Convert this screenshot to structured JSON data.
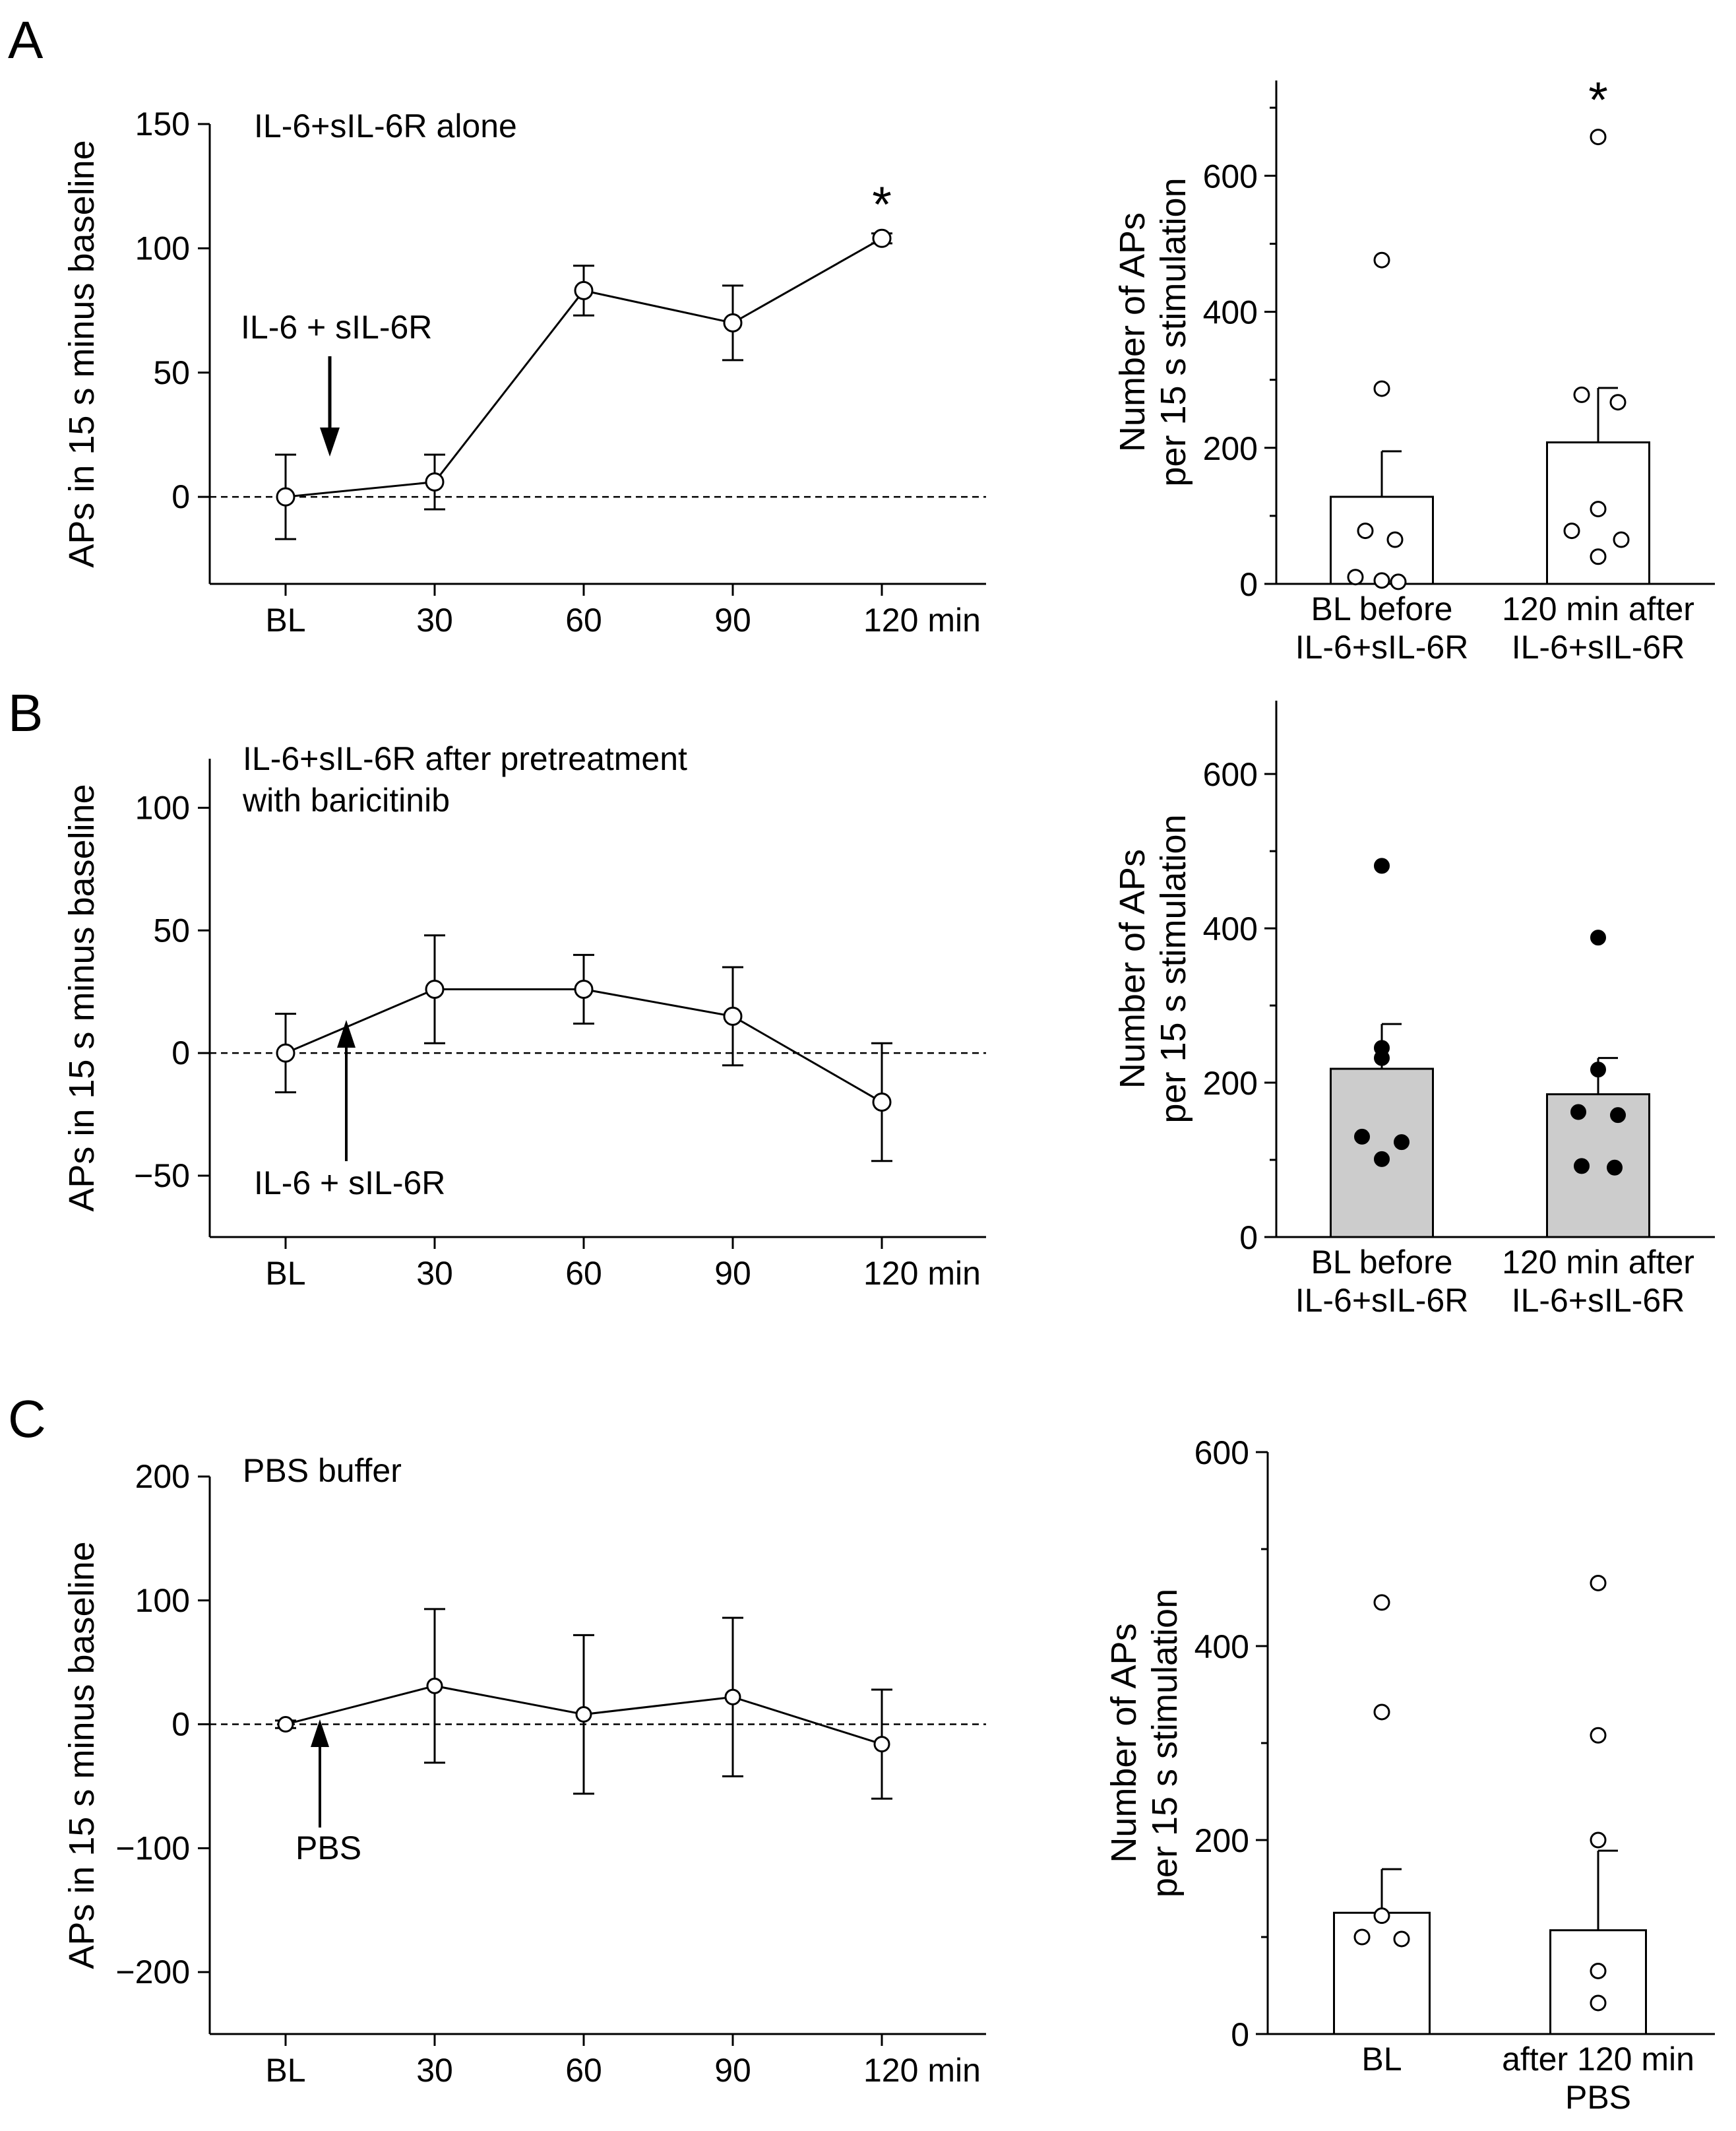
{
  "figure": {
    "panels": [
      {
        "letter": "A",
        "annotation_lines": [
          "IL-6+sIL-6R alone"
        ],
        "arrow_label": "IL-6 + sIL-6R"
      },
      {
        "letter": "B",
        "annotation_lines": [
          "IL-6+sIL-6R after pretreatment",
          "with baricitinib"
        ],
        "arrow_label": "IL-6 + sIL-6R"
      },
      {
        "letter": "C",
        "annotation_lines": [
          "PBS buffer"
        ],
        "arrow_label": "PBS"
      }
    ]
  },
  "chart_data": [
    {
      "id": "A-line",
      "type": "line",
      "panel": "A",
      "title": "IL-6+sIL-6R alone",
      "categories": [
        "BL",
        "30",
        "60",
        "90",
        "120 min"
      ],
      "values": [
        0,
        6,
        83,
        70,
        104
      ],
      "errors": [
        17,
        11,
        10,
        15,
        2
      ],
      "ylabel": "APs in 15 s minus baseline",
      "ylim": [
        -35,
        150
      ],
      "yticks": [
        0,
        50,
        100,
        150
      ],
      "reference_line": 0,
      "significance": {
        "index": 4,
        "label": "*"
      },
      "arrow": {
        "label": "IL-6 + sIL-6R",
        "direction": "down",
        "after_category": 0
      }
    },
    {
      "id": "A-bar",
      "type": "bar",
      "panel": "A",
      "categories": [
        "BL before\nIL-6+sIL-6R",
        "120 min after\nIL-6+sIL-6R"
      ],
      "values": [
        128,
        208
      ],
      "errors": [
        67,
        80
      ],
      "points": [
        [
          476,
          287,
          78,
          65,
          10,
          5,
          3
        ],
        [
          657,
          278,
          267,
          110,
          78,
          65,
          40
        ]
      ],
      "marker": "open",
      "bar_fill": "#ffffff",
      "ylabel": "Number of APs\nper 15 s stimulation",
      "ylim": [
        0,
        740
      ],
      "yticks": [
        0,
        200,
        400,
        600
      ],
      "minor_yticks": [
        100,
        300,
        500,
        700
      ],
      "significance": {
        "index": 1,
        "label": "*"
      }
    },
    {
      "id": "B-line",
      "type": "line",
      "panel": "B",
      "title": "IL-6+sIL-6R after pretreatment with baricitinib",
      "categories": [
        "BL",
        "30",
        "60",
        "90",
        "120 min"
      ],
      "values": [
        0,
        26,
        26,
        15,
        -20
      ],
      "errors": [
        16,
        22,
        14,
        20,
        24
      ],
      "ylabel": "APs in 15 s minus baseline",
      "ylim": [
        -75,
        120
      ],
      "yticks": [
        -50,
        0,
        50,
        100
      ],
      "reference_line": 0,
      "arrow": {
        "label": "IL-6 + sIL-6R",
        "direction": "up",
        "after_category": 0
      }
    },
    {
      "id": "B-bar",
      "type": "bar",
      "panel": "B",
      "categories": [
        "BL before\nIL-6+sIL-6R",
        "120 min after\nIL-6+sIL-6R"
      ],
      "values": [
        218,
        185
      ],
      "errors": [
        58,
        47
      ],
      "points": [
        [
          481,
          245,
          232,
          130,
          123,
          101
        ],
        [
          388,
          217,
          162,
          158,
          92,
          90
        ]
      ],
      "marker": "filled",
      "bar_fill": "#cccccc",
      "ylabel": "Number of APs\nper 15 s stimulation",
      "ylim": [
        0,
        695
      ],
      "yticks": [
        0,
        200,
        400,
        600
      ],
      "minor_yticks": [
        100,
        300,
        500
      ],
      "significance": null
    },
    {
      "id": "C-line",
      "type": "line",
      "panel": "C",
      "title": "PBS buffer",
      "categories": [
        "BL",
        "30",
        "60",
        "90",
        "120 min"
      ],
      "values": [
        0,
        31,
        8,
        22,
        -16
      ],
      "errors": [
        3,
        62,
        64,
        64,
        44
      ],
      "ylabel": "APs in 15 s minus baseline",
      "ylim": [
        -250,
        200
      ],
      "yticks": [
        -200,
        -100,
        0,
        100,
        200
      ],
      "reference_line": 0,
      "arrow": {
        "label": "PBS",
        "direction": "up",
        "after_category": 0
      }
    },
    {
      "id": "C-bar",
      "type": "bar",
      "panel": "C",
      "categories": [
        "BL",
        "after 120 min\nPBS"
      ],
      "values": [
        125,
        107
      ],
      "errors": [
        45,
        82
      ],
      "points": [
        [
          445,
          332,
          122,
          100,
          98
        ],
        [
          465,
          308,
          200,
          65,
          32
        ]
      ],
      "marker": "open",
      "bar_fill": "#ffffff",
      "ylabel": "Number of APs\nper 15 s stimulation",
      "ylim": [
        0,
        600
      ],
      "yticks": [
        0,
        200,
        400,
        600
      ],
      "minor_yticks": [
        100,
        300,
        500
      ],
      "significance": null
    }
  ]
}
